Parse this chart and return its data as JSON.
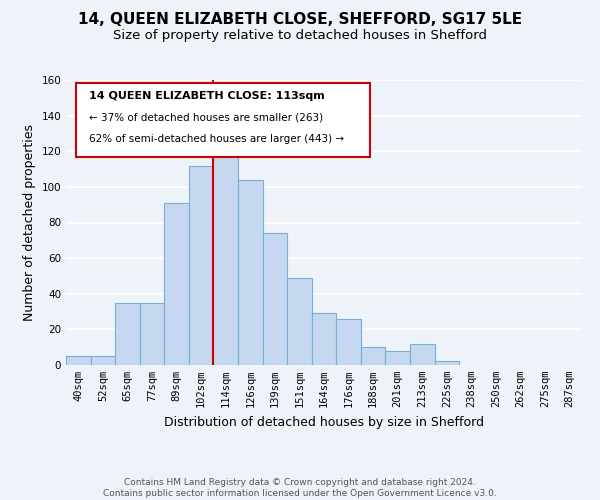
{
  "title": "14, QUEEN ELIZABETH CLOSE, SHEFFORD, SG17 5LE",
  "subtitle": "Size of property relative to detached houses in Shefford",
  "xlabel": "Distribution of detached houses by size in Shefford",
  "ylabel": "Number of detached properties",
  "bin_labels": [
    "40sqm",
    "52sqm",
    "65sqm",
    "77sqm",
    "89sqm",
    "102sqm",
    "114sqm",
    "126sqm",
    "139sqm",
    "151sqm",
    "164sqm",
    "176sqm",
    "188sqm",
    "201sqm",
    "213sqm",
    "225sqm",
    "238sqm",
    "250sqm",
    "262sqm",
    "275sqm",
    "287sqm"
  ],
  "bar_heights": [
    5,
    5,
    35,
    35,
    91,
    112,
    119,
    104,
    74,
    49,
    29,
    26,
    10,
    8,
    12,
    2,
    0,
    0,
    0,
    0,
    0
  ],
  "bar_color": "#c5d8f0",
  "bar_edge_color": "#7aadd4",
  "vline_color": "#cc0000",
  "annotation_title": "14 QUEEN ELIZABETH CLOSE: 113sqm",
  "annotation_line1": "← 37% of detached houses are smaller (263)",
  "annotation_line2": "62% of semi-detached houses are larger (443) →",
  "annotation_box_edge": "#cc0000",
  "ylim": [
    0,
    160
  ],
  "yticks": [
    0,
    20,
    40,
    60,
    80,
    100,
    120,
    140,
    160
  ],
  "footer_line1": "Contains HM Land Registry data © Crown copyright and database right 2024.",
  "footer_line2": "Contains public sector information licensed under the Open Government Licence v3.0.",
  "bg_color": "#eef2f9",
  "grid_color": "#ffffff",
  "title_fontsize": 11,
  "subtitle_fontsize": 9.5,
  "axis_label_fontsize": 9,
  "tick_fontsize": 7.5,
  "footer_fontsize": 6.5
}
